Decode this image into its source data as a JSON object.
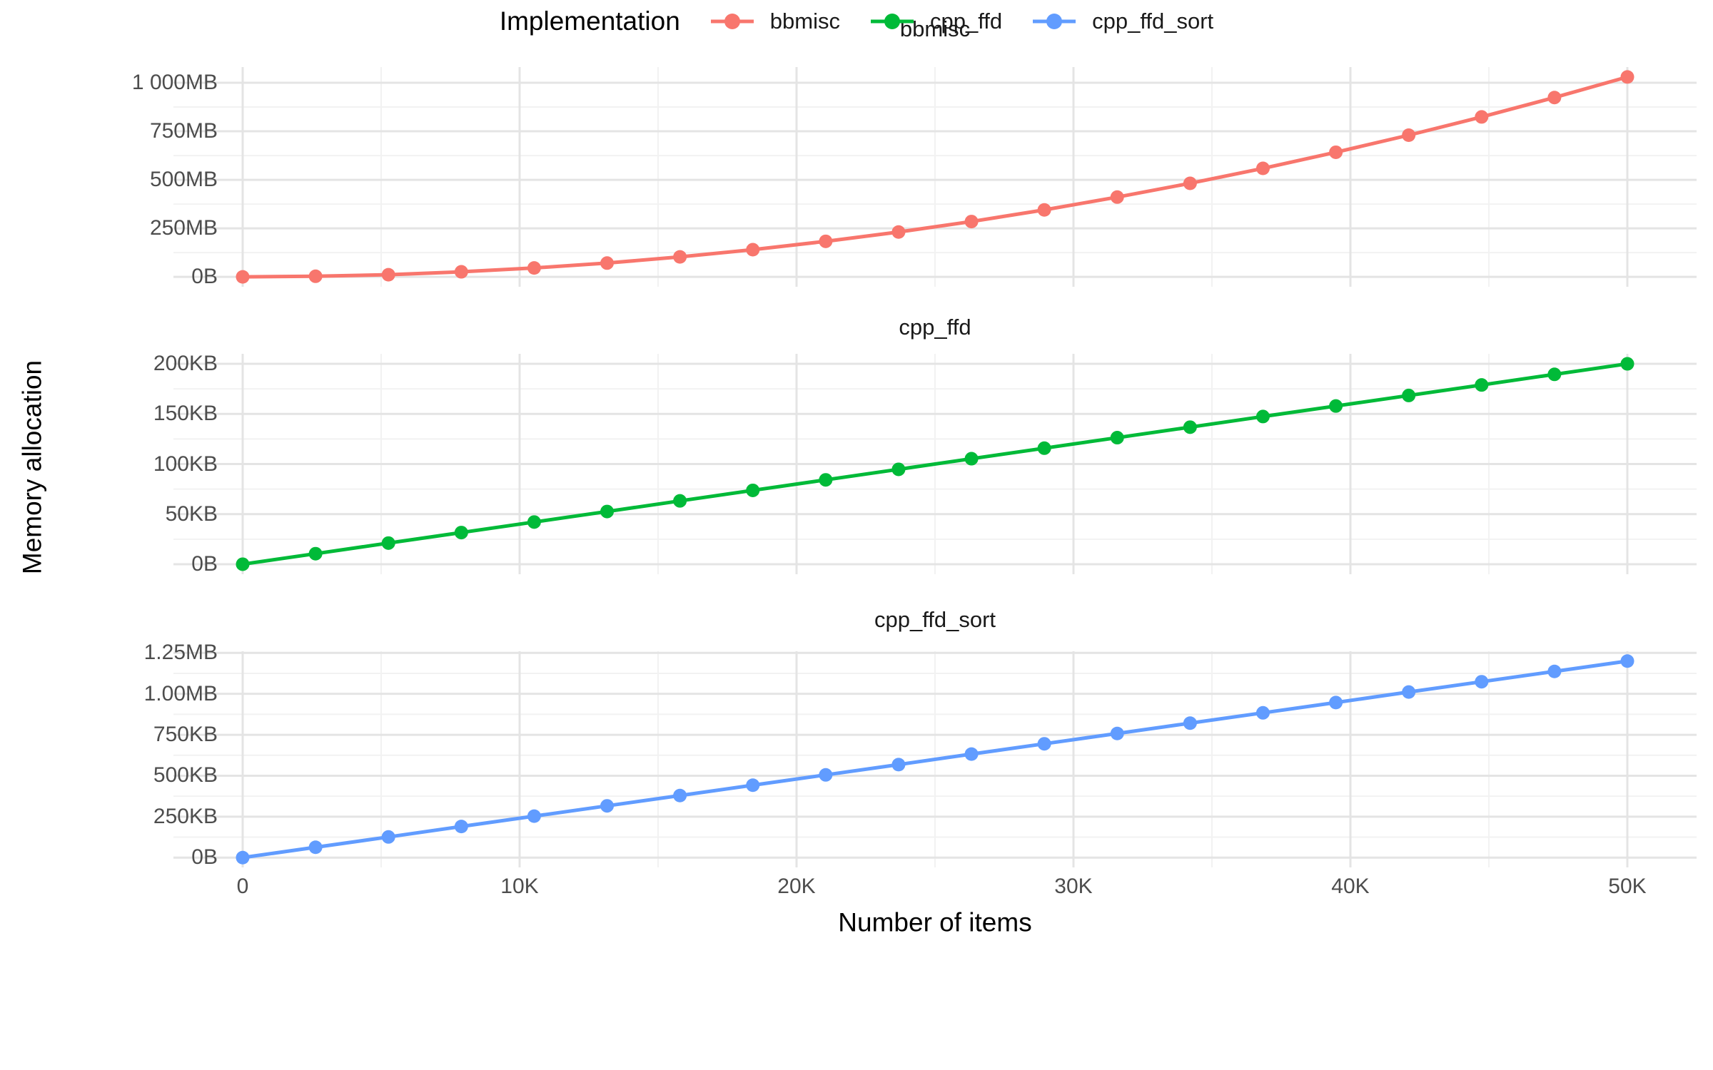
{
  "figure": {
    "y_axis_title": "Memory allocation",
    "x_axis_title": "Number of items",
    "legend": {
      "title": "Implementation",
      "entries": [
        {
          "label": "bbmisc",
          "color": "#F8766D"
        },
        {
          "label": "cpp_ffd",
          "color": "#00BA38"
        },
        {
          "label": "cpp_ffd_sort",
          "color": "#619CFF"
        }
      ]
    },
    "colors": {
      "grid_major": "#E4E4E4",
      "grid_minor": "#F2F2F2",
      "tick_text": "#4d4d4d",
      "title_text": "#000000",
      "background": "#ffffff"
    }
  },
  "chart_data": {
    "type": "line",
    "title": "",
    "xlabel": "Number of items",
    "ylabel": "Memory allocation",
    "grid": true,
    "legend_position": "bottom",
    "facet_layout": "3 stacked panels, free y scales",
    "x": [
      0,
      2632,
      5263,
      7895,
      10526,
      13158,
      15789,
      18421,
      21053,
      23684,
      26316,
      28947,
      31579,
      34211,
      36842,
      39474,
      42105,
      44737,
      47368,
      50000
    ],
    "x_ticks": [
      {
        "v": 0,
        "label": "0"
      },
      {
        "v": 10000,
        "label": "10K"
      },
      {
        "v": 20000,
        "label": "20K"
      },
      {
        "v": 30000,
        "label": "30K"
      },
      {
        "v": 40000,
        "label": "40K"
      },
      {
        "v": 50000,
        "label": "50K"
      }
    ],
    "x_minor": [
      5000,
      15000,
      25000,
      35000,
      45000
    ],
    "xlim": [
      -2500,
      52500
    ],
    "panels": [
      {
        "title": "bbmisc",
        "series": "bbmisc",
        "color": "#F8766D",
        "unit": "MB",
        "values": [
          0,
          3,
          11,
          26,
          46,
          71,
          103,
          140,
          183,
          231,
          285,
          345,
          411,
          482,
          559,
          642,
          730,
          824,
          924,
          1030
        ],
        "y_ticks": [
          {
            "v": 0,
            "label": "0B"
          },
          {
            "v": 250,
            "label": "250MB"
          },
          {
            "v": 500,
            "label": "500MB"
          },
          {
            "v": 750,
            "label": "750MB"
          },
          {
            "v": 1000,
            "label": "1 000MB"
          }
        ],
        "y_minor": [
          125,
          375,
          625,
          875
        ],
        "ylim": [
          -51,
          1081
        ]
      },
      {
        "title": "cpp_ffd",
        "series": "cpp_ffd",
        "color": "#00BA38",
        "unit": "KB",
        "values": [
          0,
          10.5,
          21.1,
          31.6,
          42.1,
          52.6,
          63.2,
          73.7,
          84.2,
          94.7,
          105.3,
          115.8,
          126.3,
          136.8,
          147.4,
          157.9,
          168.4,
          178.9,
          189.5,
          200
        ],
        "y_ticks": [
          {
            "v": 0,
            "label": "0B"
          },
          {
            "v": 50,
            "label": "50KB"
          },
          {
            "v": 100,
            "label": "100KB"
          },
          {
            "v": 150,
            "label": "150KB"
          },
          {
            "v": 200,
            "label": "200KB"
          }
        ],
        "y_minor": [
          25,
          75,
          125,
          175
        ],
        "ylim": [
          -10,
          210
        ]
      },
      {
        "title": "cpp_ffd_sort",
        "series": "cpp_ffd_sort",
        "color": "#619CFF",
        "unit": "KB",
        "values": [
          0,
          63,
          126,
          190,
          253,
          316,
          379,
          442,
          505,
          568,
          632,
          695,
          758,
          821,
          884,
          947,
          1011,
          1074,
          1137,
          1200
        ],
        "y_ticks": [
          {
            "v": 0,
            "label": "0B"
          },
          {
            "v": 250,
            "label": "250KB"
          },
          {
            "v": 500,
            "label": "500KB"
          },
          {
            "v": 750,
            "label": "750KB"
          },
          {
            "v": 1000,
            "label": "1.00MB"
          },
          {
            "v": 1250,
            "label": "1.25MB"
          }
        ],
        "y_minor": [
          125,
          375,
          625,
          875,
          1125
        ],
        "ylim": [
          -60,
          1260
        ]
      }
    ]
  }
}
